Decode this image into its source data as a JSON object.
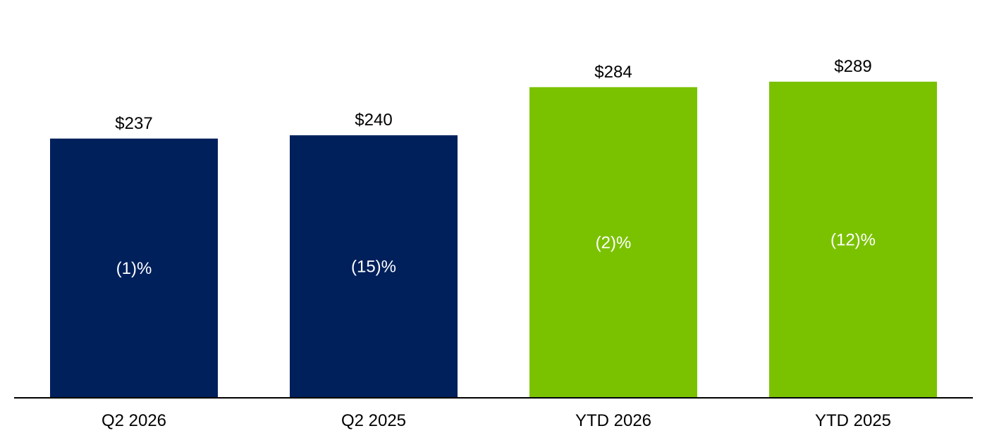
{
  "chart_data": {
    "type": "bar",
    "categories": [
      "Q2 2026",
      "Q2 2025",
      "YTD 2026",
      "YTD 2025"
    ],
    "values": [
      237,
      240,
      284,
      289
    ],
    "value_labels": [
      "$237",
      "$240",
      "$284",
      "$289"
    ],
    "change_labels": [
      "(1)%",
      "(15)%",
      "(2)%",
      "(12)%"
    ],
    "bar_colors": [
      "#00205B",
      "#00205B",
      "#7AC200",
      "#7AC200"
    ],
    "ylim": [
      0,
      290
    ],
    "grid": false,
    "legend": "none"
  }
}
